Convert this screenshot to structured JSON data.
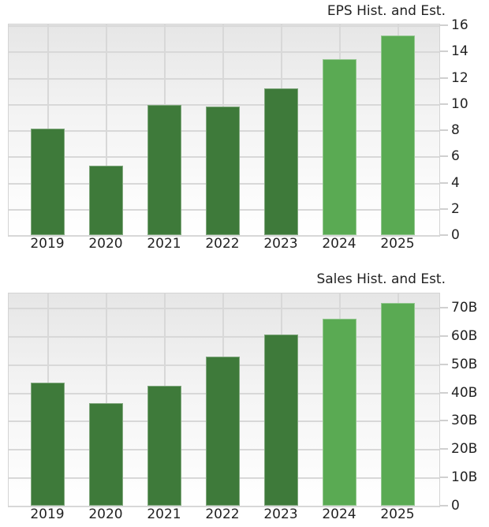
{
  "chart_data": [
    {
      "type": "bar",
      "title": "EPS Hist. and Est.",
      "xlabel": "",
      "ylabel": "",
      "categories": [
        "2019",
        "2020",
        "2021",
        "2022",
        "2023",
        "2024",
        "2025"
      ],
      "values": [
        8.1,
        5.3,
        9.9,
        9.8,
        11.2,
        13.4,
        15.2
      ],
      "series_type": [
        "historical",
        "historical",
        "historical",
        "historical",
        "historical",
        "estimate",
        "estimate"
      ],
      "ylim": [
        0,
        16
      ],
      "yticks": [
        "0",
        "2",
        "4",
        "6",
        "8",
        "10",
        "12",
        "14",
        "16"
      ],
      "grid": true,
      "y_axis_position": "right",
      "colors": {
        "historical": "#3e7a3a",
        "estimate": "#5aaa53"
      }
    },
    {
      "type": "bar",
      "title": "Sales Hist. and Est.",
      "xlabel": "",
      "ylabel": "",
      "categories": [
        "2019",
        "2020",
        "2021",
        "2022",
        "2023",
        "2024",
        "2025"
      ],
      "values": [
        43.6,
        36.3,
        42.5,
        52.6,
        60.4,
        66.0,
        71.6
      ],
      "value_unit": "B",
      "series_type": [
        "historical",
        "historical",
        "historical",
        "historical",
        "historical",
        "estimate",
        "estimate"
      ],
      "ylim": [
        0,
        75
      ],
      "yticks": [
        "0",
        "10B",
        "20B",
        "30B",
        "40B",
        "50B",
        "60B",
        "70B"
      ],
      "grid": true,
      "y_axis_position": "right",
      "colors": {
        "historical": "#3e7a3a",
        "estimate": "#5aaa53"
      }
    }
  ]
}
